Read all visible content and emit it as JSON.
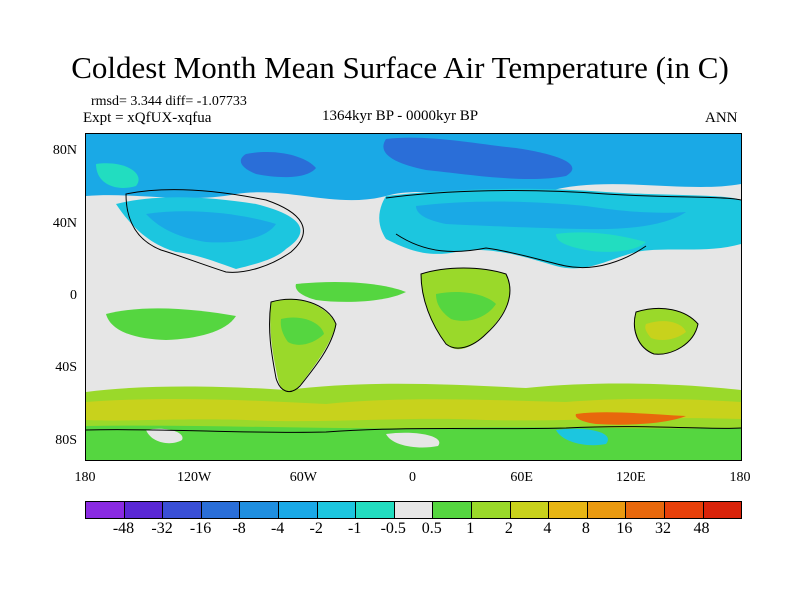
{
  "title": "Coldest Month Mean Surface Air Temperature (in C)",
  "stats": "rmsd= 3.344 diff= -1.07733",
  "expt": "Expt = xQfUX-xqfua",
  "period": "1364kyr BP - 0000kyr BP",
  "season": "ANN",
  "lat_ticks": [
    "80N",
    "40N",
    "0",
    "40S",
    "80S"
  ],
  "lat_values": [
    80,
    40,
    0,
    -40,
    -80
  ],
  "lon_ticks": [
    "180",
    "120W",
    "60W",
    "0",
    "60E",
    "120E",
    "180"
  ],
  "lon_values": [
    -180,
    -120,
    -60,
    0,
    60,
    120,
    180
  ],
  "colorbar": {
    "labels": [
      "-48",
      "-32",
      "-16",
      "-8",
      "-4",
      "-2",
      "-1",
      "-0.5",
      "0.5",
      "1",
      "2",
      "4",
      "8",
      "16",
      "32",
      "48"
    ],
    "colors": [
      "#8a2be2",
      "#5a28d4",
      "#3a4fd6",
      "#2a6ed8",
      "#1f8fe0",
      "#1aa9e6",
      "#1cc6df",
      "#22ddc0",
      "#e6e6e6",
      "#55d640",
      "#9ad92a",
      "#c8d21c",
      "#e7b514",
      "#ea9a10",
      "#e8680c",
      "#e8400a",
      "#d9230a"
    ]
  }
}
